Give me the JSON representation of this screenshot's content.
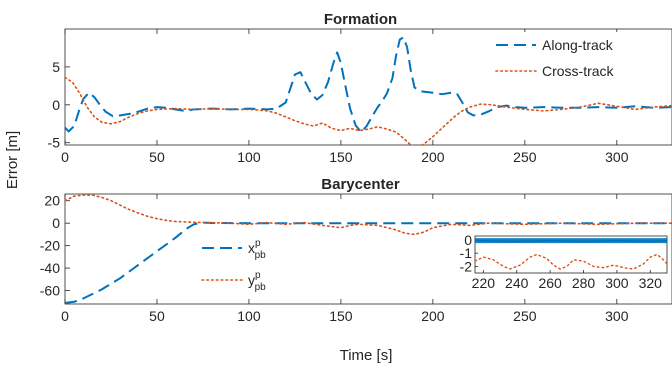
{
  "figure": {
    "ylabel": "Error [m]",
    "xlabel": "Time [s]"
  },
  "chart_data": [
    {
      "type": "line",
      "title": "Formation",
      "xlabel": "",
      "ylabel": "Error [m]",
      "xlim": [
        0,
        330
      ],
      "ylim": [
        -5.3,
        10
      ],
      "xticks": [
        0,
        50,
        100,
        150,
        200,
        250,
        300
      ],
      "yticks": [
        -5,
        0,
        5
      ],
      "grid": false,
      "legend_position": "top-right",
      "series": [
        {
          "name": "Along-track",
          "color": "#0072BD",
          "style": "dashed",
          "points": [
            [
              0,
              -3.0
            ],
            [
              2,
              -3.5
            ],
            [
              5,
              -2.8
            ],
            [
              8,
              -0.5
            ],
            [
              10,
              0.8
            ],
            [
              13,
              1.6
            ],
            [
              16,
              1.0
            ],
            [
              19,
              0.0
            ],
            [
              22,
              -0.9
            ],
            [
              26,
              -1.5
            ],
            [
              30,
              -1.4
            ],
            [
              35,
              -1.2
            ],
            [
              40,
              -0.9
            ],
            [
              45,
              -0.5
            ],
            [
              50,
              -0.3
            ],
            [
              55,
              -0.4
            ],
            [
              60,
              -0.6
            ],
            [
              65,
              -0.8
            ],
            [
              70,
              -0.6
            ],
            [
              80,
              -0.5
            ],
            [
              90,
              -0.6
            ],
            [
              100,
              -0.5
            ],
            [
              110,
              -0.6
            ],
            [
              115,
              -0.5
            ],
            [
              120,
              0.3
            ],
            [
              123,
              2.5
            ],
            [
              125,
              4.0
            ],
            [
              128,
              4.3
            ],
            [
              131,
              2.8
            ],
            [
              134,
              1.4
            ],
            [
              137,
              0.7
            ],
            [
              140,
              1.3
            ],
            [
              143,
              3.0
            ],
            [
              146,
              5.6
            ],
            [
              148,
              6.9
            ],
            [
              150,
              5.5
            ],
            [
              152,
              3.0
            ],
            [
              155,
              -0.5
            ],
            [
              158,
              -2.7
            ],
            [
              161,
              -3.6
            ],
            [
              164,
              -2.8
            ],
            [
              167,
              -1.5
            ],
            [
              170,
              -0.3
            ],
            [
              172,
              0.3
            ],
            [
              175,
              1.5
            ],
            [
              178,
              3.5
            ],
            [
              180,
              6.5
            ],
            [
              182,
              8.6
            ],
            [
              184,
              8.9
            ],
            [
              186,
              7.6
            ],
            [
              188,
              4.5
            ],
            [
              190,
              2.3
            ],
            [
              193,
              1.8
            ],
            [
              196,
              1.7
            ],
            [
              200,
              1.6
            ],
            [
              205,
              1.4
            ],
            [
              210,
              1.6
            ],
            [
              213,
              1.5
            ],
            [
              216,
              0.3
            ],
            [
              219,
              -1.0
            ],
            [
              222,
              -1.4
            ],
            [
              226,
              -1.3
            ],
            [
              230,
              -0.9
            ],
            [
              235,
              -0.3
            ],
            [
              240,
              -0.1
            ],
            [
              245,
              -0.3
            ],
            [
              250,
              -0.4
            ],
            [
              260,
              -0.3
            ],
            [
              270,
              -0.4
            ],
            [
              280,
              -0.4
            ],
            [
              290,
              -0.3
            ],
            [
              300,
              -0.4
            ],
            [
              310,
              -0.2
            ],
            [
              320,
              -0.4
            ],
            [
              330,
              -0.3
            ]
          ]
        },
        {
          "name": "Cross-track",
          "color": "#D95319",
          "style": "dotted",
          "points": [
            [
              0,
              3.6
            ],
            [
              4,
              3.0
            ],
            [
              8,
              1.5
            ],
            [
              12,
              -0.3
            ],
            [
              16,
              -1.6
            ],
            [
              20,
              -2.3
            ],
            [
              25,
              -2.5
            ],
            [
              30,
              -2.2
            ],
            [
              35,
              -1.6
            ],
            [
              40,
              -1.1
            ],
            [
              45,
              -0.8
            ],
            [
              50,
              -0.6
            ],
            [
              60,
              -0.5
            ],
            [
              70,
              -0.6
            ],
            [
              80,
              -0.5
            ],
            [
              90,
              -0.6
            ],
            [
              100,
              -0.6
            ],
            [
              110,
              -0.8
            ],
            [
              115,
              -1.1
            ],
            [
              120,
              -1.6
            ],
            [
              125,
              -2.1
            ],
            [
              130,
              -2.5
            ],
            [
              135,
              -2.8
            ],
            [
              140,
              -2.4
            ],
            [
              145,
              -3.1
            ],
            [
              150,
              -3.4
            ],
            [
              155,
              -3.1
            ],
            [
              160,
              -3.4
            ],
            [
              165,
              -3.2
            ],
            [
              170,
              -2.9
            ],
            [
              175,
              -3.2
            ],
            [
              180,
              -3.6
            ],
            [
              184,
              -4.4
            ],
            [
              188,
              -5.3
            ],
            [
              192,
              -5.6
            ],
            [
              196,
              -5.0
            ],
            [
              200,
              -4.2
            ],
            [
              204,
              -3.3
            ],
            [
              208,
              -2.4
            ],
            [
              212,
              -1.5
            ],
            [
              216,
              -0.8
            ],
            [
              220,
              -0.3
            ],
            [
              226,
              0.1
            ],
            [
              232,
              0.0
            ],
            [
              240,
              -0.3
            ],
            [
              250,
              -0.6
            ],
            [
              260,
              -0.8
            ],
            [
              270,
              -0.6
            ],
            [
              280,
              -0.3
            ],
            [
              290,
              0.2
            ],
            [
              300,
              -0.2
            ],
            [
              310,
              -0.6
            ],
            [
              320,
              -0.3
            ],
            [
              330,
              -0.1
            ]
          ]
        }
      ]
    },
    {
      "type": "line",
      "title": "Barycenter",
      "xlabel": "Time [s]",
      "ylabel": "",
      "xlim": [
        0,
        330
      ],
      "ylim": [
        -72,
        26
      ],
      "xticks": [
        0,
        50,
        100,
        150,
        200,
        250,
        300
      ],
      "yticks": [
        -60,
        -40,
        -20,
        0,
        20
      ],
      "grid": false,
      "legend_position": "center-left",
      "series": [
        {
          "name": "x",
          "superscript": "p",
          "subscript": "pb",
          "color": "#0072BD",
          "style": "dashed",
          "points": [
            [
              0,
              -71
            ],
            [
              5,
              -70
            ],
            [
              10,
              -67
            ],
            [
              20,
              -59
            ],
            [
              30,
              -49
            ],
            [
              40,
              -37
            ],
            [
              50,
              -25
            ],
            [
              60,
              -13
            ],
            [
              66,
              -5
            ],
            [
              70,
              -1
            ],
            [
              75,
              0.5
            ],
            [
              80,
              0.2
            ],
            [
              100,
              0
            ],
            [
              150,
              0
            ],
            [
              200,
              0
            ],
            [
              250,
              0
            ],
            [
              300,
              0
            ],
            [
              330,
              0
            ]
          ]
        },
        {
          "name": "y",
          "superscript": "p",
          "subscript": "pb",
          "color": "#D95319",
          "style": "dotted",
          "points": [
            [
              0,
              20
            ],
            [
              5,
              24
            ],
            [
              10,
              25
            ],
            [
              15,
              25
            ],
            [
              20,
              23
            ],
            [
              25,
              20
            ],
            [
              30,
              16
            ],
            [
              35,
              12
            ],
            [
              40,
              9
            ],
            [
              45,
              6
            ],
            [
              50,
              4
            ],
            [
              55,
              2.5
            ],
            [
              60,
              1.5
            ],
            [
              70,
              0.8
            ],
            [
              80,
              0.5
            ],
            [
              90,
              0
            ],
            [
              100,
              -1
            ],
            [
              110,
              0.5
            ],
            [
              120,
              -1
            ],
            [
              130,
              0.5
            ],
            [
              140,
              -2
            ],
            [
              150,
              -4
            ],
            [
              155,
              -2
            ],
            [
              160,
              -1
            ],
            [
              170,
              -2
            ],
            [
              180,
              -6
            ],
            [
              185,
              -9
            ],
            [
              190,
              -10
            ],
            [
              195,
              -8
            ],
            [
              200,
              -4
            ],
            [
              210,
              -1
            ],
            [
              220,
              -2
            ],
            [
              230,
              0
            ],
            [
              250,
              -1
            ],
            [
              270,
              0
            ],
            [
              290,
              -1
            ],
            [
              310,
              0
            ],
            [
              330,
              0
            ]
          ]
        }
      ],
      "inset": {
        "xlim": [
          215,
          330
        ],
        "ylim": [
          -2.5,
          0.3
        ],
        "xticks": [
          220,
          240,
          260,
          280,
          300,
          320
        ],
        "yticks": [
          0,
          -1,
          -2
        ],
        "series": [
          {
            "name": "x",
            "color": "#0072BD",
            "style": "solid",
            "points": [
              [
                215,
                -0.05
              ],
              [
                240,
                -0.1
              ],
              [
                260,
                -0.05
              ],
              [
                280,
                -0.1
              ],
              [
                300,
                -0.05
              ],
              [
                320,
                -0.1
              ],
              [
                330,
                -0.05
              ]
            ]
          },
          {
            "name": "y",
            "color": "#D95319",
            "style": "dotted",
            "points": [
              [
                215,
                -1.6
              ],
              [
                220,
                -1.3
              ],
              [
                226,
                -1.5
              ],
              [
                232,
                -2.0
              ],
              [
                236,
                -2.2
              ],
              [
                242,
                -1.9
              ],
              [
                248,
                -1.3
              ],
              [
                252,
                -1.1
              ],
              [
                258,
                -1.4
              ],
              [
                262,
                -1.9
              ],
              [
                266,
                -2.2
              ],
              [
                270,
                -2.0
              ],
              [
                274,
                -1.5
              ],
              [
                280,
                -1.6
              ],
              [
                286,
                -2.0
              ],
              [
                292,
                -2.1
              ],
              [
                298,
                -1.9
              ],
              [
                304,
                -2.1
              ],
              [
                310,
                -2.2
              ],
              [
                316,
                -1.8
              ],
              [
                320,
                -1.3
              ],
              [
                324,
                -1.1
              ],
              [
                327,
                -1.4
              ],
              [
                330,
                -1.8
              ]
            ]
          }
        ]
      }
    }
  ]
}
